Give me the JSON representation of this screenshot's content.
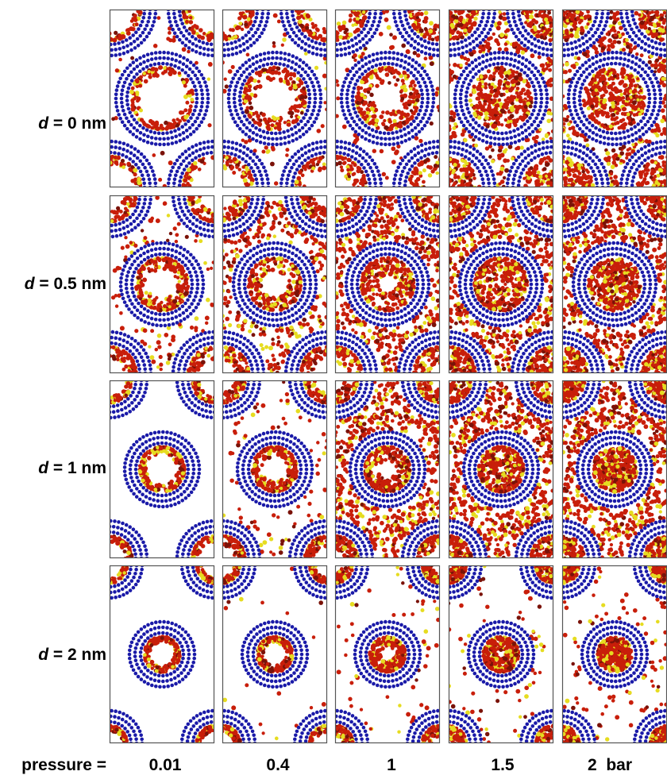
{
  "figure": {
    "row_var": "d",
    "row_sep": " = ",
    "rows": [
      {
        "value": "0 nm",
        "inner_fill": [
          0.25,
          0.4,
          0.55,
          0.95,
          1.0
        ],
        "pore_fill": [
          0.12,
          0.2,
          0.32,
          0.85,
          1.0
        ],
        "triangle_only": [
          true,
          true,
          true,
          false,
          false
        ]
      },
      {
        "value": "0.5 nm",
        "inner_fill": [
          0.45,
          0.5,
          0.65,
          0.85,
          1.0
        ],
        "pore_fill": [
          0.25,
          0.7,
          0.95,
          1.0,
          1.0
        ],
        "triangle_only": [
          false,
          false,
          false,
          false,
          false
        ]
      },
      {
        "value": "1 nm",
        "inner_fill": [
          0.3,
          0.45,
          0.6,
          0.8,
          1.0
        ],
        "pore_fill": [
          0.0,
          0.25,
          1.0,
          1.0,
          1.0
        ],
        "triangle_only": [
          false,
          false,
          false,
          false,
          false
        ]
      },
      {
        "value": "2 nm",
        "inner_fill": [
          0.3,
          0.35,
          0.6,
          0.75,
          1.0
        ],
        "pore_fill": [
          0.0,
          0.05,
          0.15,
          0.2,
          0.25
        ],
        "triangle_only": [
          false,
          false,
          false,
          false,
          false
        ]
      }
    ],
    "pressure_label": "pressure =",
    "columns": [
      "0.01",
      "0.4",
      "1",
      "1.5",
      "2  bar"
    ],
    "colors": {
      "cnt": "#1a1aa8",
      "molecule": "#c81e0a",
      "molecule_highlight": "#e6dc20",
      "molecule_dark": "#7a1208",
      "frame": "#555555"
    },
    "nanotube_walls": 3
  }
}
